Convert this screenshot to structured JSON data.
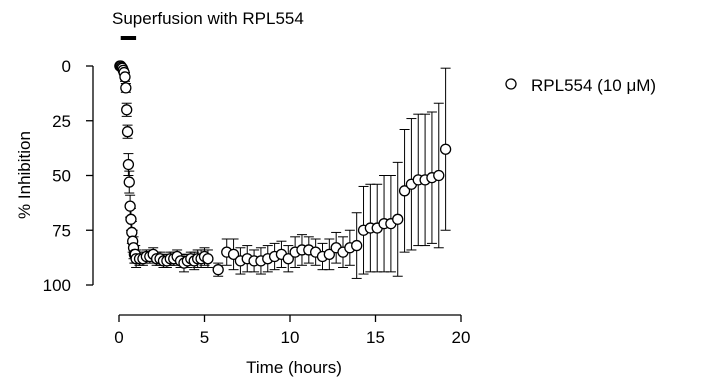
{
  "chart_data": {
    "type": "scatter",
    "title": "",
    "xlabel": "Time (hours)",
    "ylabel": "% Inhibition",
    "xlim": [
      0,
      20
    ],
    "ylim": [
      100,
      0
    ],
    "y_inverted": true,
    "xticks": [
      0,
      5,
      10,
      15,
      20
    ],
    "yticks": [
      0,
      25,
      50,
      75,
      100
    ],
    "grid": false,
    "legend_position": "top-right",
    "annotation": {
      "text": "Superfusion with RPL554",
      "x_start": 0.1,
      "x_end": 1.0
    },
    "marker_color": "#000000",
    "series": [
      {
        "name": "RPL554 (10 μM)",
        "marker": "open-circle",
        "x": [
          0.05,
          0.1,
          0.15,
          0.2,
          0.25,
          0.3,
          0.35,
          0.4,
          0.45,
          0.5,
          0.55,
          0.6,
          0.65,
          0.7,
          0.75,
          0.8,
          0.85,
          0.9,
          0.95,
          1.0,
          1.2,
          1.4,
          1.6,
          1.8,
          2.0,
          2.2,
          2.4,
          2.6,
          2.8,
          3.0,
          3.2,
          3.4,
          3.6,
          3.8,
          4.0,
          4.2,
          4.4,
          4.6,
          4.8,
          5.0,
          5.2,
          5.8,
          6.3,
          6.7,
          7.1,
          7.5,
          7.9,
          8.3,
          8.7,
          9.1,
          9.5,
          9.9,
          10.3,
          10.7,
          11.1,
          11.5,
          11.9,
          12.3,
          12.7,
          13.1,
          13.5,
          13.9,
          14.3,
          14.7,
          15.1,
          15.5,
          15.9,
          16.3,
          16.7,
          17.1,
          17.5,
          17.9,
          18.3,
          18.7,
          19.1
        ],
        "y": [
          0,
          0,
          0.5,
          1,
          2,
          3,
          5,
          10,
          20,
          30,
          45,
          53,
          64,
          70,
          76,
          80,
          83,
          86,
          86,
          88,
          88,
          88,
          87,
          87,
          86,
          88,
          88,
          89,
          89,
          88,
          88,
          87,
          89,
          90,
          89,
          88,
          89,
          88,
          88,
          87,
          88,
          93,
          85,
          86,
          89,
          88,
          89,
          89,
          88,
          87,
          86,
          88,
          85,
          84,
          84,
          85,
          87,
          86,
          83,
          85,
          83,
          82,
          75,
          74,
          74,
          72,
          72,
          70,
          57,
          54,
          52,
          52,
          51,
          50,
          38
        ],
        "err": [
          0.5,
          0.5,
          0.5,
          1,
          1,
          1,
          2,
          2,
          3,
          3,
          5,
          5,
          5,
          5,
          5,
          5,
          5,
          4,
          4,
          4,
          3,
          3,
          3,
          3,
          3,
          3,
          3,
          3,
          3,
          3,
          3,
          3,
          3,
          4,
          3,
          3,
          4,
          4,
          4,
          4,
          4,
          3,
          6,
          7,
          6,
          6,
          5,
          6,
          6,
          6,
          6,
          6,
          7,
          7,
          6,
          6,
          6,
          7,
          7,
          7,
          8,
          15,
          20,
          20,
          20,
          22,
          22,
          26,
          28,
          30,
          30,
          30,
          30,
          33,
          37
        ]
      }
    ]
  }
}
